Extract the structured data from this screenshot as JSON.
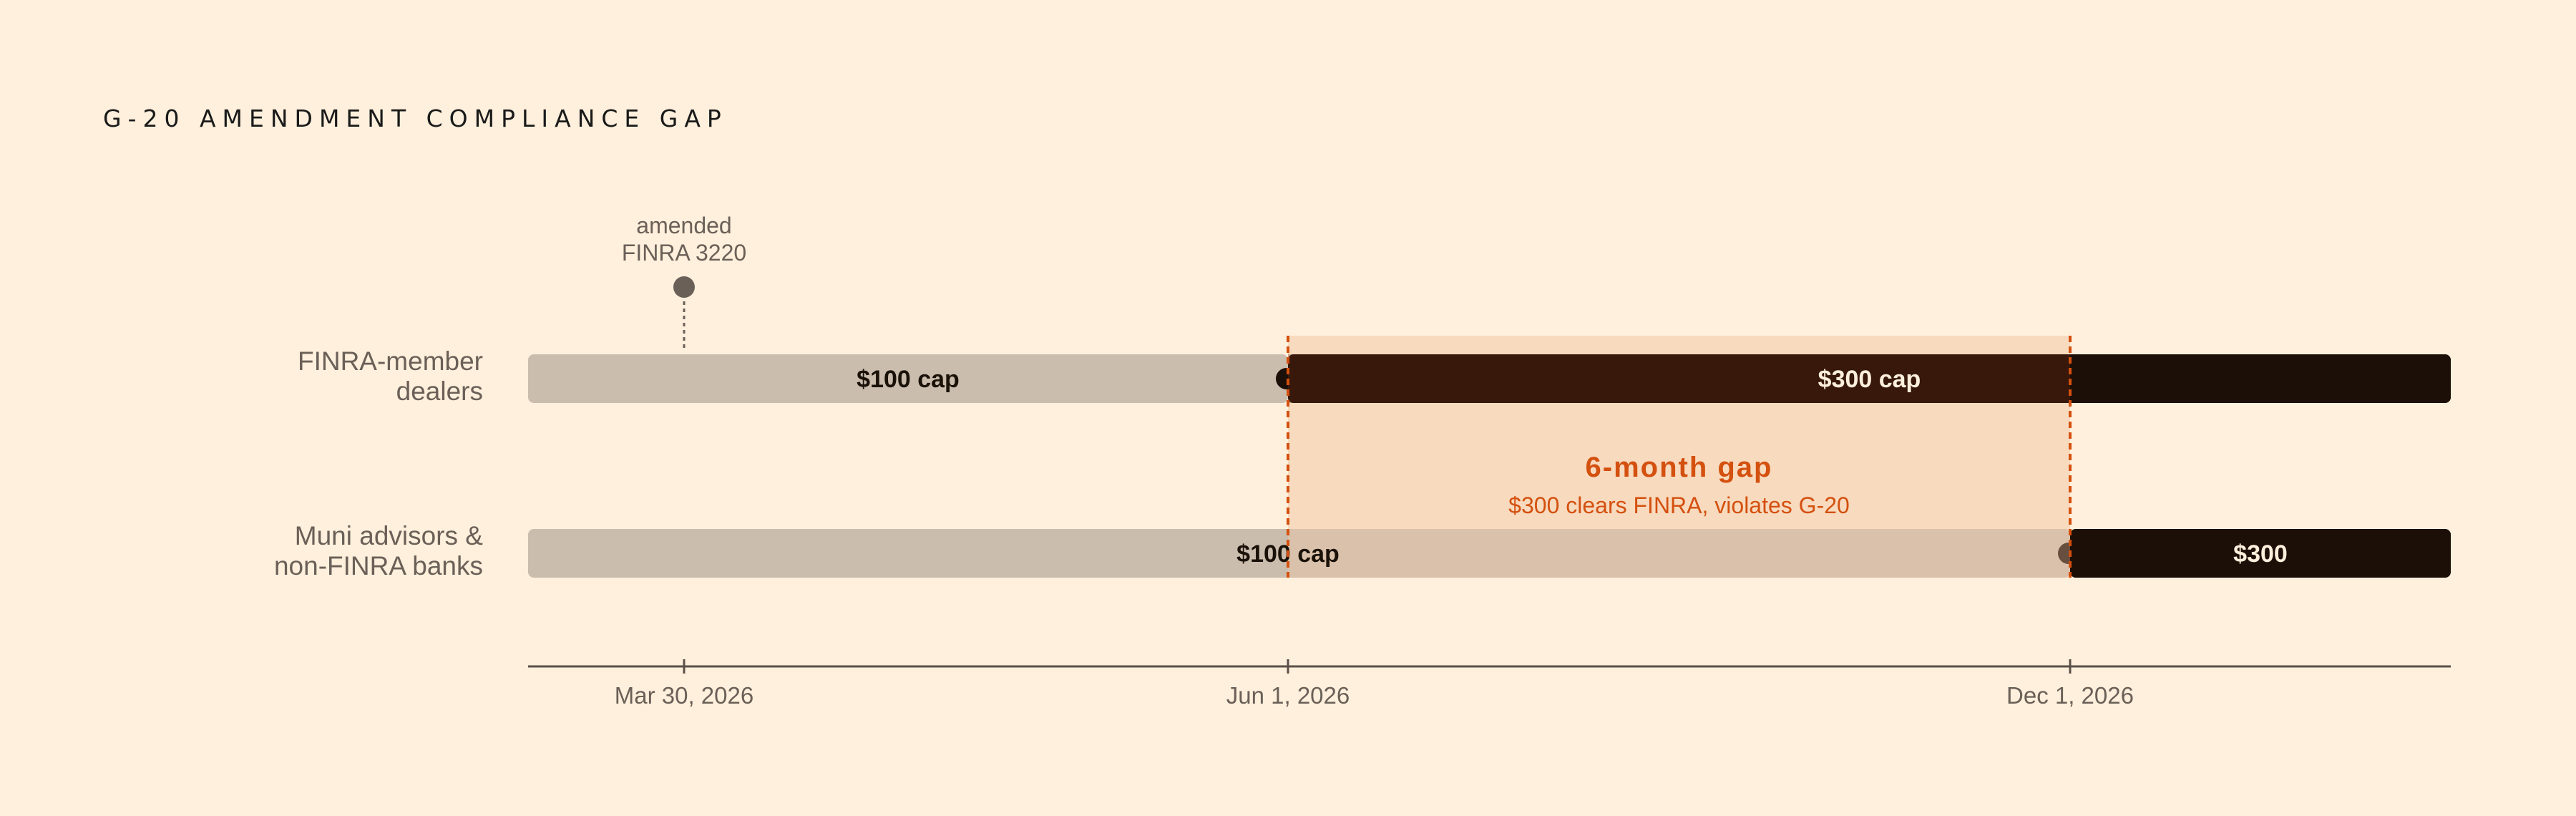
{
  "title": "G-20 AMENDMENT COMPLIANCE GAP",
  "colors": {
    "background": "#FEF0DC",
    "old_cap_bar": "#CBBDAE",
    "new_cap_bar": "#1C0F08",
    "gap_highlight": "#F3C9A6",
    "gap_accent": "#D4500F",
    "muted_text": "#6B6058"
  },
  "chart_data": {
    "type": "timeline",
    "x_axis": {
      "type": "date",
      "range": [
        "2026-03-01",
        "2026-12-31"
      ],
      "ticks": [
        {
          "date": "2026-03-30",
          "label": "Mar 30, 2026"
        },
        {
          "date": "2026-06-01",
          "label": "Jun 1, 2026"
        },
        {
          "date": "2026-12-01",
          "label": "Dec 1, 2026"
        }
      ]
    },
    "rows": [
      {
        "label": [
          "FINRA-member",
          "dealers"
        ],
        "segments": [
          {
            "start": "2026-03-01",
            "end": "2026-06-01",
            "label": "$100 cap",
            "kind": "old"
          },
          {
            "start": "2026-06-01",
            "end": "2026-12-31",
            "label": "$300 cap",
            "kind": "new"
          }
        ],
        "switch_date": "2026-06-01"
      },
      {
        "label": [
          "Muni advisors &",
          "non-FINRA banks"
        ],
        "segments": [
          {
            "start": "2026-03-01",
            "end": "2026-12-01",
            "label": "$100 cap",
            "label_at": "2026-06-01",
            "kind": "old"
          },
          {
            "start": "2026-12-01",
            "end": "2026-12-31",
            "label": "$300",
            "kind": "new"
          }
        ],
        "switch_date": "2026-12-01"
      }
    ],
    "events": [
      {
        "date": "2026-03-30",
        "label": [
          "amended",
          "FINRA 3220"
        ],
        "row": 0
      }
    ],
    "gap": {
      "start": "2026-06-01",
      "end": "2026-12-01",
      "title": "6-month gap",
      "subtitle": "$300 clears FINRA, violates G-20"
    }
  }
}
